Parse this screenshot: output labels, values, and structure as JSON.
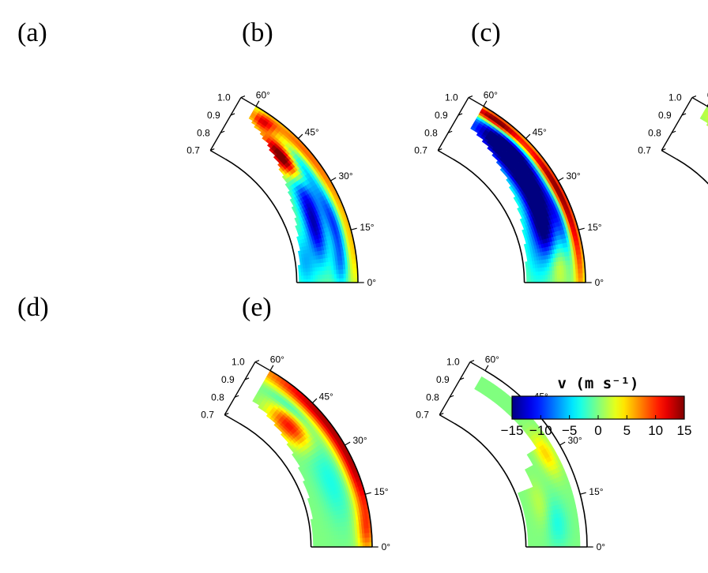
{
  "chart_data": {
    "type": "heatmap",
    "description_units": "meridional-plane quarter-annulus maps; radius in r/R, latitude in degrees",
    "radius_range": [
      0.7,
      1.0
    ],
    "latitude_range": [
      0,
      60
    ],
    "panels": [
      {
        "label": "(a)",
        "r_ticks": [
          "1.0",
          "0.9",
          "0.8",
          "0.7"
        ],
        "lat_ticks": [
          "60°",
          "45°",
          "30°",
          "15°",
          "0°"
        ],
        "mask": {
          "r_min_top": 0.93,
          "r_min_bottom": 0.71
        },
        "blobs": [
          {
            "r": 0.875,
            "lat": 42,
            "sr": 0.035,
            "sl": 5,
            "v": 15
          },
          {
            "r": 0.9,
            "lat": 48,
            "sr": 0.03,
            "sl": 5,
            "v": 12
          },
          {
            "r": 0.95,
            "lat": 56,
            "sr": 0.025,
            "sl": 3,
            "v": 10
          },
          {
            "r": 0.98,
            "lat": 46,
            "sr": 0.025,
            "sl": 10,
            "v": 6
          },
          {
            "r": 0.99,
            "lat": 28,
            "sr": 0.025,
            "sl": 12,
            "v": 6
          },
          {
            "r": 0.985,
            "lat": 8,
            "sr": 0.03,
            "sl": 8,
            "v": 4
          },
          {
            "r": 0.92,
            "lat": 42,
            "sr": 0.025,
            "sl": 6,
            "v": -10
          },
          {
            "r": 0.86,
            "lat": 30,
            "sr": 0.03,
            "sl": 8,
            "v": -9
          },
          {
            "r": 0.83,
            "lat": 18,
            "sr": 0.03,
            "sl": 8,
            "v": -11
          },
          {
            "r": 0.93,
            "lat": 18,
            "sr": 0.025,
            "sl": 10,
            "v": -10
          },
          {
            "r": 0.75,
            "lat": 8,
            "sr": 0.04,
            "sl": 8,
            "v": -6
          },
          {
            "r": 0.91,
            "lat": 5,
            "sr": 0.03,
            "sl": 5,
            "v": -4
          }
        ]
      },
      {
        "label": "(b)",
        "r_ticks": [
          "1.0",
          "0.9",
          "0.8",
          "0.7"
        ],
        "lat_ticks": [
          "60°",
          "45°",
          "30°",
          "15°",
          "0°"
        ],
        "mask": {
          "r_min_top": 0.88,
          "r_min_bottom": 0.71
        },
        "blobs": [
          {
            "r": 0.975,
            "lat": 30,
            "sr": 0.02,
            "sl": 22,
            "v": 17
          },
          {
            "r": 0.97,
            "lat": 55,
            "sr": 0.02,
            "sl": 6,
            "v": 12
          },
          {
            "r": 0.9,
            "lat": 48,
            "sr": 0.05,
            "sl": 10,
            "v": -18
          },
          {
            "r": 0.86,
            "lat": 32,
            "sr": 0.04,
            "sl": 10,
            "v": -15
          },
          {
            "r": 0.83,
            "lat": 18,
            "sr": 0.04,
            "sl": 8,
            "v": -12
          },
          {
            "r": 0.93,
            "lat": 20,
            "sr": 0.025,
            "sl": 8,
            "v": -8
          },
          {
            "r": 0.87,
            "lat": 6,
            "sr": 0.03,
            "sl": 5,
            "v": 4
          },
          {
            "r": 0.76,
            "lat": 10,
            "sr": 0.04,
            "sl": 10,
            "v": -4
          }
        ]
      },
      {
        "label": "(c)",
        "r_ticks": [
          "1.0",
          "0.9",
          "0.8",
          "0.7"
        ],
        "lat_ticks": [
          "60°",
          "45°",
          "30°",
          "15°",
          "0°"
        ],
        "mask": {
          "r_min_top": 0.94,
          "r_min_bottom": 0.71
        },
        "blobs": [
          {
            "r": 0.97,
            "lat": 40,
            "sr": 0.025,
            "sl": 9,
            "v": 16
          },
          {
            "r": 0.98,
            "lat": 26,
            "sr": 0.03,
            "sl": 10,
            "v": 10
          },
          {
            "r": 0.99,
            "lat": 10,
            "sr": 0.025,
            "sl": 8,
            "v": 7
          },
          {
            "r": 0.92,
            "lat": 42,
            "sr": 0.03,
            "sl": 8,
            "v": 5
          },
          {
            "r": 0.85,
            "lat": 22,
            "sr": 0.04,
            "sl": 12,
            "v": 2
          },
          {
            "r": 0.78,
            "lat": 18,
            "sr": 0.03,
            "sl": 6,
            "v": -6
          },
          {
            "r": 0.8,
            "lat": 6,
            "sr": 0.04,
            "sl": 6,
            "v": -3
          }
        ]
      },
      {
        "label": "(d)",
        "r_ticks": [
          "1.0",
          "0.9",
          "0.8",
          "0.7"
        ],
        "lat_ticks": [
          "60°",
          "45°",
          "30°",
          "15°",
          "0°"
        ],
        "mask": {
          "r_min_top": 0.83,
          "r_min_bottom": 0.71
        },
        "blobs": [
          {
            "r": 0.99,
            "lat": 42,
            "sr": 0.035,
            "sl": 16,
            "v": 13
          },
          {
            "r": 0.99,
            "lat": 18,
            "sr": 0.035,
            "sl": 10,
            "v": 8
          },
          {
            "r": 0.84,
            "lat": 45,
            "sr": 0.04,
            "sl": 6,
            "v": 11
          },
          {
            "r": 0.91,
            "lat": 48,
            "sr": 0.02,
            "sl": 6,
            "v": -4
          },
          {
            "r": 0.86,
            "lat": 22,
            "sr": 0.05,
            "sl": 10,
            "v": -3
          },
          {
            "r": 0.97,
            "lat": 4,
            "sr": 0.03,
            "sl": 5,
            "v": 6
          }
        ]
      },
      {
        "label": "(e)",
        "r_ticks": [
          "1.0",
          "0.9",
          "0.8",
          "0.7"
        ],
        "lat_ticks": [
          "60°",
          "45°",
          "30°",
          "15°",
          "0°"
        ],
        "mask": {
          "steps": [
            [
              33,
              0.9
            ],
            [
              28,
              0.84
            ],
            [
              22,
              0.79
            ],
            [
              0,
              0.71
            ]
          ],
          "r_max": 0.965
        },
        "blobs": [
          {
            "r": 0.92,
            "lat": 30,
            "sr": 0.03,
            "sl": 5,
            "v": 5
          },
          {
            "r": 0.86,
            "lat": 8,
            "sr": 0.04,
            "sl": 6,
            "v": -3
          },
          {
            "r": 0.8,
            "lat": 15,
            "sr": 0.03,
            "sl": 6,
            "v": 2
          }
        ]
      }
    ],
    "colorbar": {
      "title": "v (m s⁻¹)",
      "vmin": -15,
      "vmax": 15,
      "tick_labels": [
        "−15",
        "−10",
        "−5",
        "0",
        "5",
        "10",
        "15"
      ],
      "tick_values": [
        -15,
        -10,
        -5,
        0,
        5,
        10,
        15
      ],
      "colormap": "jet"
    }
  }
}
